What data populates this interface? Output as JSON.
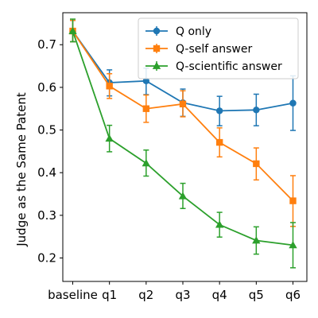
{
  "chart_data": {
    "type": "line",
    "title": "",
    "xlabel": "",
    "ylabel": "Judge as the Same Patent",
    "categories": [
      "baseline",
      "q1",
      "q2",
      "q3",
      "q4",
      "q5",
      "q6"
    ],
    "ylim": [
      0.145,
      0.775
    ],
    "yticks": [
      0.2,
      0.3,
      0.4,
      0.5,
      0.6,
      0.7
    ],
    "ytick_labels": [
      "0.2",
      "0.3",
      "0.4",
      "0.5",
      "0.6",
      "0.7"
    ],
    "grid": false,
    "legend_position": "top-right",
    "series": [
      {
        "name": "Q only",
        "color": "#1f77b4",
        "marker": "circle",
        "values": [
          0.732,
          0.611,
          0.615,
          0.564,
          0.545,
          0.547,
          0.563
        ],
        "error_low": [
          0.707,
          0.58,
          0.583,
          0.532,
          0.51,
          0.51,
          0.499
        ],
        "error_high": [
          0.757,
          0.641,
          0.645,
          0.596,
          0.579,
          0.584,
          0.627
        ]
      },
      {
        "name": "Q-self answer",
        "color": "#ff7f0e",
        "marker": "square",
        "values": [
          0.732,
          0.603,
          0.55,
          0.561,
          0.471,
          0.421,
          0.334
        ],
        "error_low": [
          0.707,
          0.574,
          0.518,
          0.531,
          0.437,
          0.383,
          0.274
        ],
        "error_high": [
          0.757,
          0.632,
          0.582,
          0.592,
          0.505,
          0.458,
          0.393
        ]
      },
      {
        "name": "Q-scientific answer",
        "color": "#2ca02c",
        "marker": "triangle",
        "values": [
          0.732,
          0.48,
          0.422,
          0.345,
          0.278,
          0.241,
          0.23
        ],
        "error_low": [
          0.707,
          0.449,
          0.392,
          0.316,
          0.249,
          0.209,
          0.177
        ],
        "error_high": [
          0.76,
          0.511,
          0.453,
          0.375,
          0.307,
          0.273,
          0.283
        ]
      }
    ]
  }
}
